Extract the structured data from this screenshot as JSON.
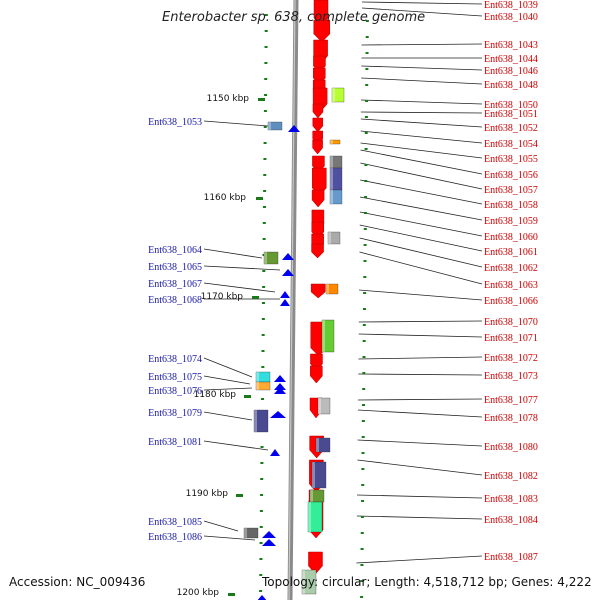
{
  "title": "Enterobacter sp. 638, complete genome",
  "accession": "Accession: NC_009436",
  "topology": "Topology: circular; Length: 4,518,712 bp; Genes: 4,222",
  "colors": {
    "backbone": "#8a8a8a",
    "right_label": "#cc0000",
    "left_label": "#1a1aaa",
    "tick": "#1a7a1a"
  },
  "ruler": [
    "1150 kbp",
    "1160 kbp",
    "1170 kbp",
    "1180 kbp",
    "1190 kbp",
    "1200 kbp"
  ],
  "right_labels": [
    "Ent638_1039",
    "Ent638_1040",
    "Ent638_1043",
    "Ent638_1044",
    "Ent638_1046",
    "Ent638_1048",
    "Ent638_1050",
    "Ent638_1051",
    "Ent638_1052",
    "Ent638_1054",
    "Ent638_1055",
    "Ent638_1056",
    "Ent638_1057",
    "Ent638_1058",
    "Ent638_1059",
    "Ent638_1060",
    "Ent638_1061",
    "Ent638_1062",
    "Ent638_1063",
    "Ent638_1066",
    "Ent638_1070",
    "Ent638_1071",
    "Ent638_1072",
    "Ent638_1073",
    "Ent638_1077",
    "Ent638_1078",
    "Ent638_1080",
    "Ent638_1082",
    "Ent638_1083",
    "Ent638_1084",
    "Ent638_1087"
  ],
  "left_labels": [
    "Ent638_1053",
    "Ent638_1064",
    "Ent638_1065",
    "Ent638_1067",
    "Ent638_1068",
    "Ent638_1074",
    "Ent638_1075",
    "Ent638_1076",
    "Ent638_1079",
    "Ent638_1081",
    "Ent638_1085",
    "Ent638_1086"
  ]
}
